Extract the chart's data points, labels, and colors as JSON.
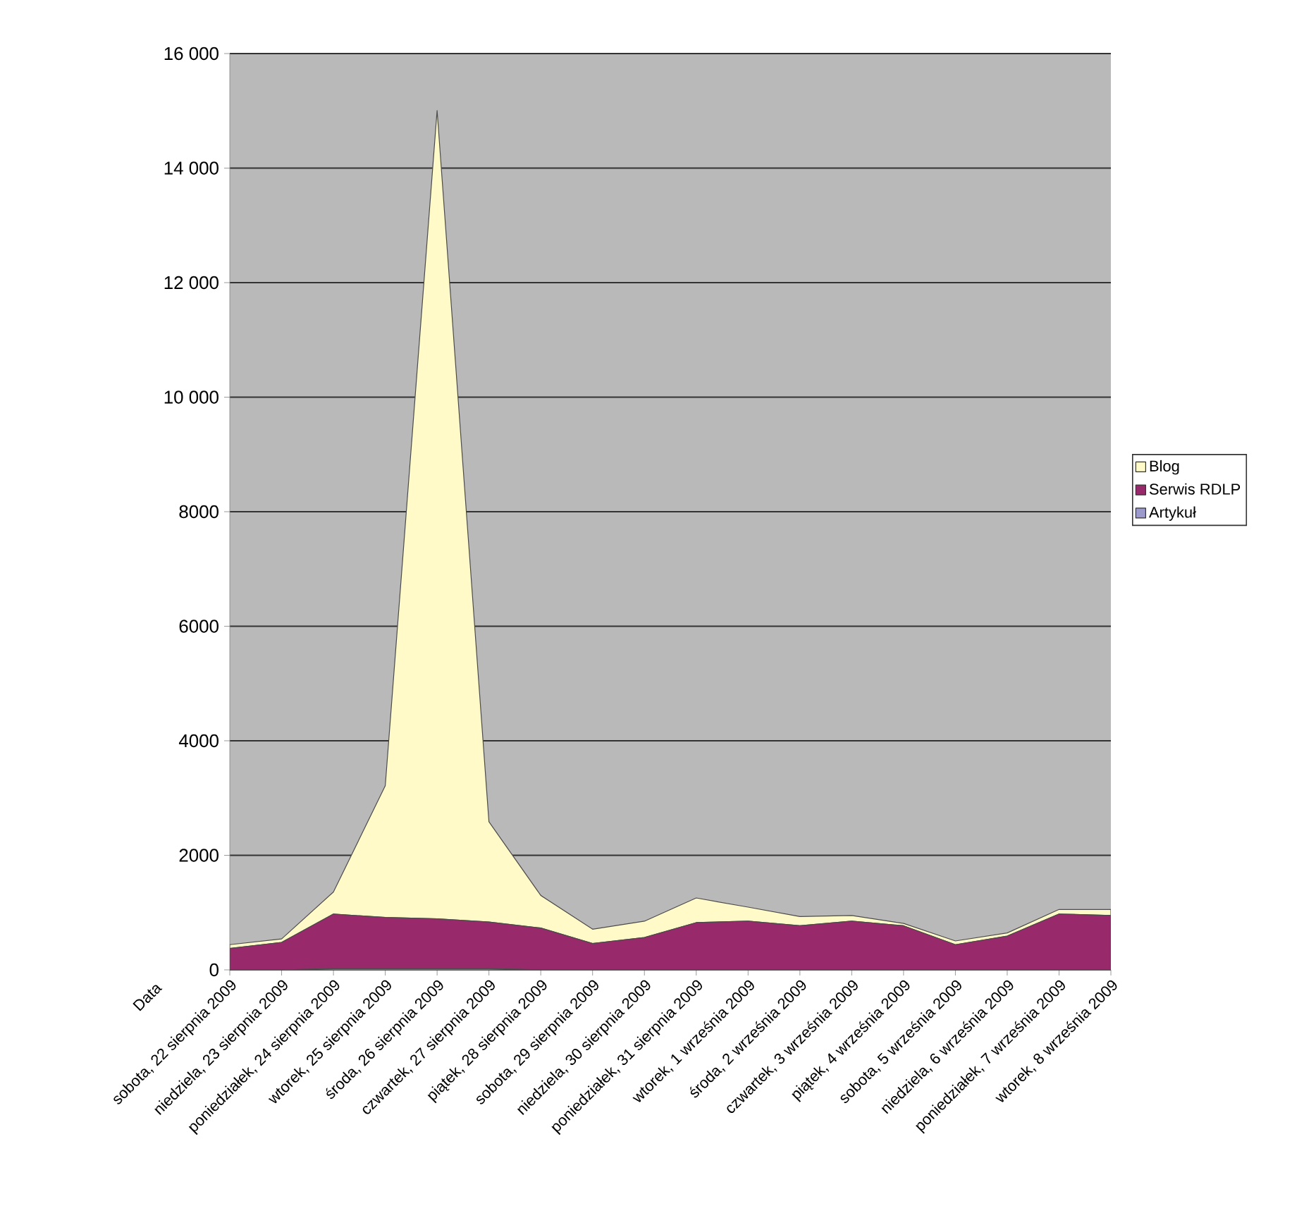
{
  "chart_data": {
    "type": "area",
    "stacked": true,
    "xlabel": "Data",
    "categories": [
      "sobota, 22 sierpnia 2009",
      "niedziela, 23 sierpnia 2009",
      "poniedziałek, 24 sierpnia 2009",
      "wtorek, 25 sierpnia 2009",
      "środa, 26 sierpnia 2009",
      "czwartek, 27 sierpnia 2009",
      "piątek, 28 sierpnia 2009",
      "sobota, 29 sierpnia 2009",
      "niedziela, 30 sierpnia 2009",
      "poniedziałek, 31 sierpnia 2009",
      "wtorek, 1 września 2009",
      "środa, 2 września 2009",
      "czwartek, 3 września 2009",
      "piątek, 4 września 2009",
      "sobota, 5 września 2009",
      "niedziela, 6 września 2009",
      "poniedziałek, 7 września 2009",
      "wtorek, 8 września 2009"
    ],
    "series": [
      {
        "name": "Artykuł",
        "color": "#9c99cc",
        "values": [
          0,
          0,
          20,
          20,
          20,
          20,
          0,
          0,
          0,
          0,
          0,
          0,
          0,
          0,
          0,
          0,
          0,
          0
        ]
      },
      {
        "name": "Serwis RDLP",
        "color": "#98296a",
        "values": [
          375,
          480,
          955,
          895,
          870,
          815,
          730,
          460,
          565,
          825,
          850,
          770,
          850,
          770,
          440,
          590,
          975,
          950
        ]
      },
      {
        "name": "Blog",
        "color": "#fffac8",
        "values": [
          65,
          60,
          385,
          2300,
          14115,
          1750,
          570,
          250,
          285,
          430,
          245,
          160,
          100,
          40,
          65,
          55,
          80,
          105
        ]
      }
    ],
    "ylim": [
      0,
      16000
    ],
    "yticks": [
      0,
      2000,
      4000,
      6000,
      8000,
      {
        "value": 10000,
        "label": "10 000"
      },
      {
        "value": 12000,
        "label": "12 000"
      },
      {
        "value": 14000,
        "label": "14 000"
      },
      {
        "value": 16000,
        "label": "16 000"
      }
    ],
    "grid": "y",
    "legend": "right"
  }
}
